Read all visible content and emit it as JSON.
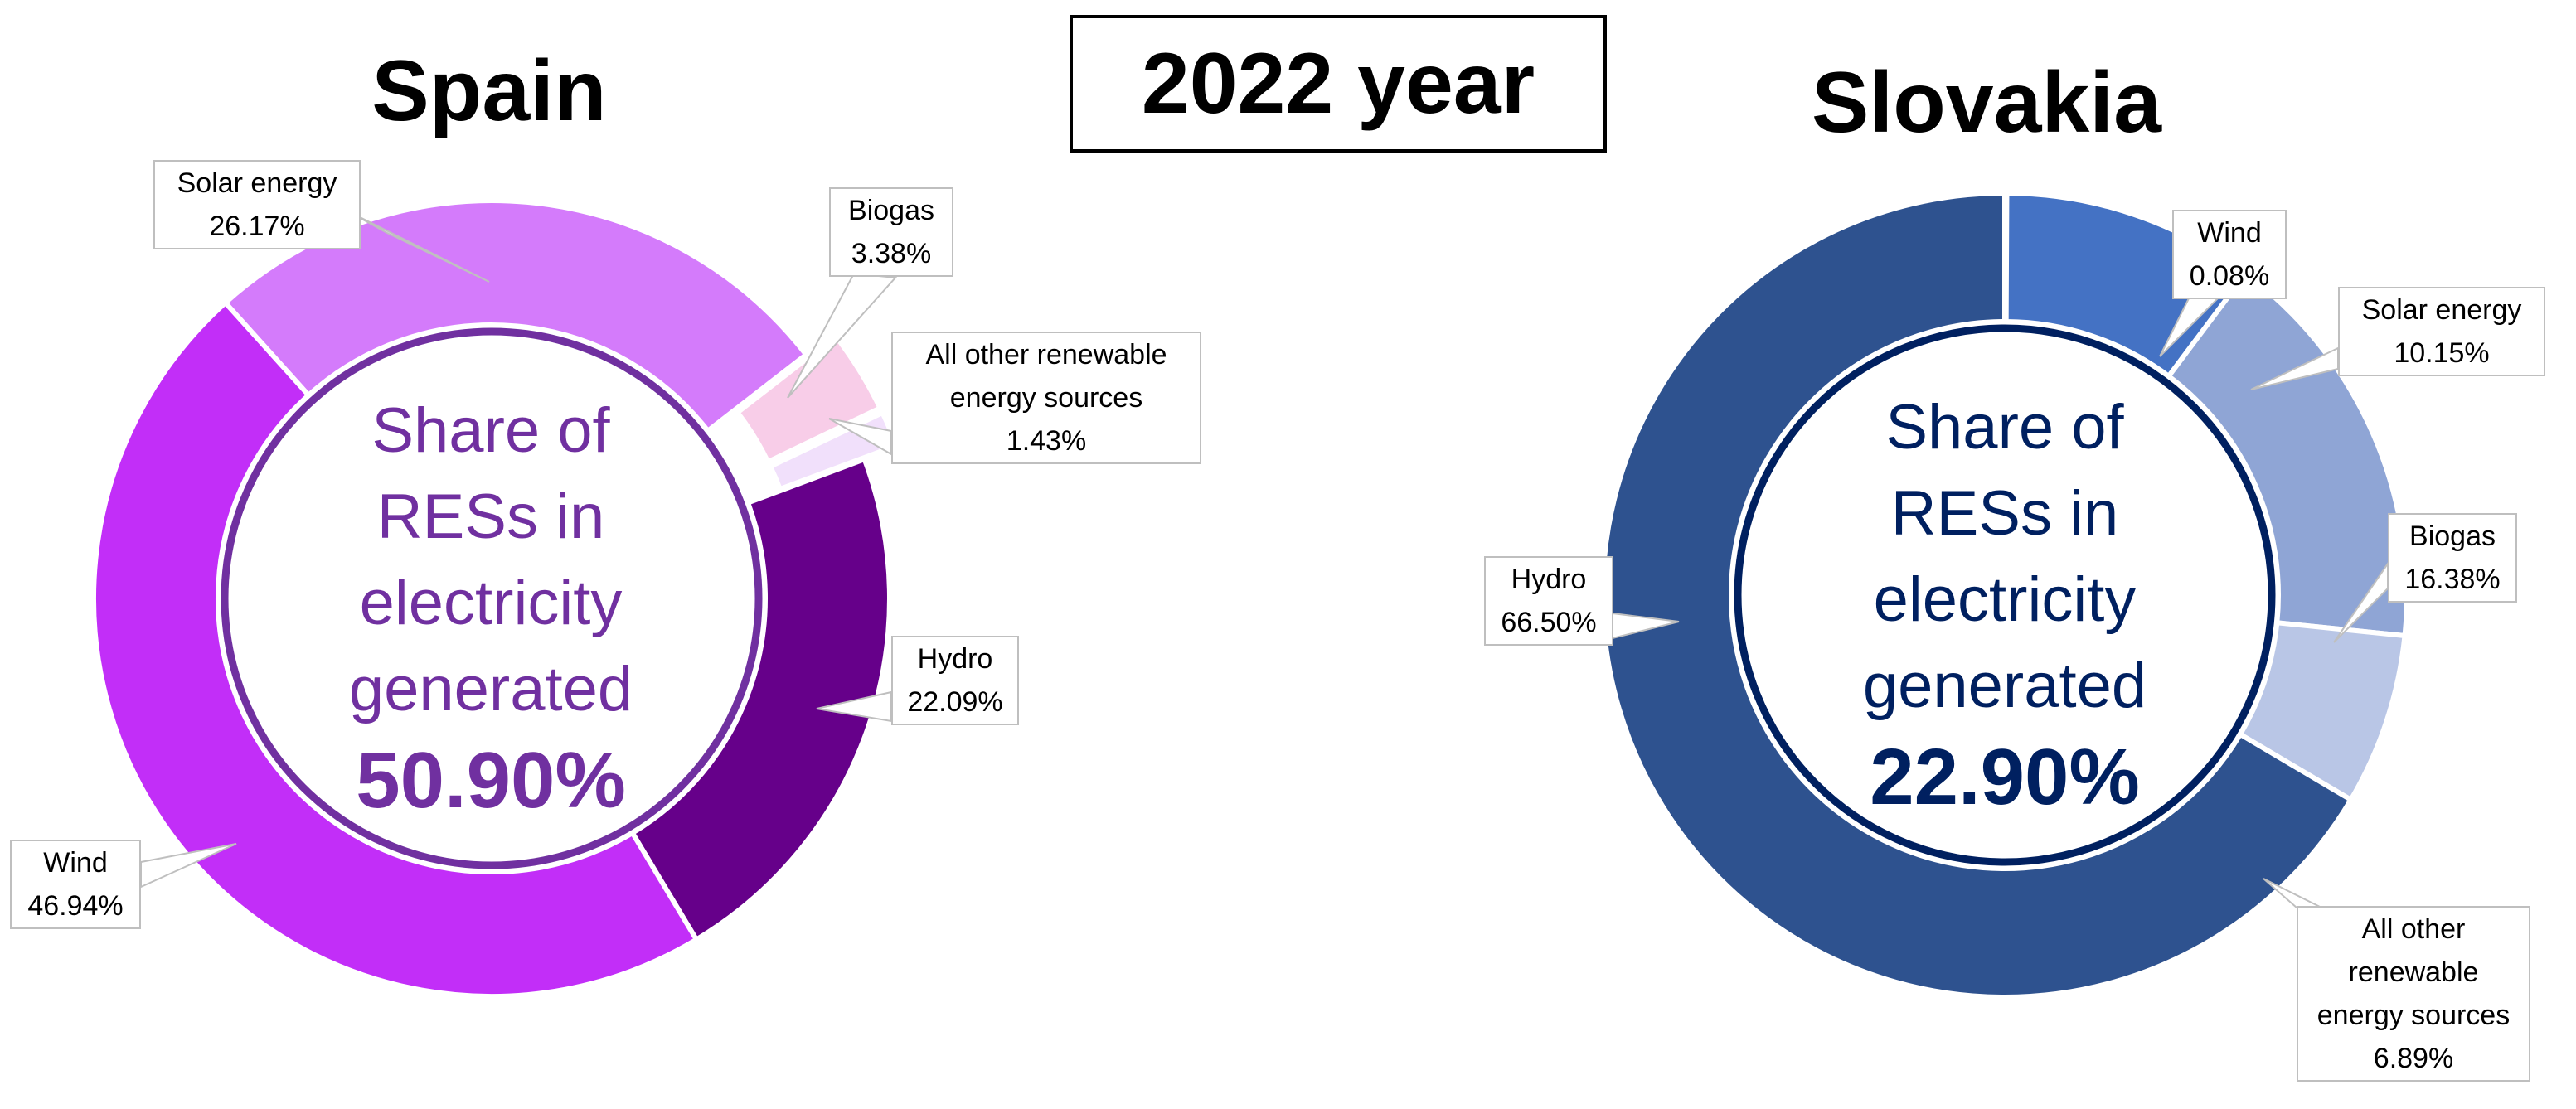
{
  "header": {
    "year_label": "2022 year"
  },
  "chart_data": [
    {
      "type": "pie",
      "variant": "donut",
      "title": "Spain",
      "center_label_lines": [
        "Share of",
        "RESs in",
        "electricity",
        "generated"
      ],
      "center_value": "50.90%",
      "center_color": "#7030a0",
      "slices": [
        {
          "name": "Solar energy",
          "value": 26.17,
          "label": "26.17%",
          "color": "#d47bfb"
        },
        {
          "name": "Biogas",
          "value": 3.38,
          "label": "3.38%",
          "color": "#f8cde8"
        },
        {
          "name": "All other renewable energy sources",
          "value": 1.43,
          "label": "1.43%",
          "color": "#f1e0fb"
        },
        {
          "name": "Hydro",
          "value": 22.09,
          "label": "22.09%",
          "color": "#66008a"
        },
        {
          "name": "Wind",
          "value": 46.94,
          "label": "46.94%",
          "color": "#c22ef8"
        }
      ]
    },
    {
      "type": "pie",
      "variant": "donut",
      "title": "Slovakia",
      "center_label_lines": [
        "Share of",
        "RESs in",
        "electricity",
        "generated"
      ],
      "center_value": "22.90%",
      "center_color": "#002060",
      "slices": [
        {
          "name": "Wind",
          "value": 0.08,
          "label": "0.08%",
          "color": "#2e4f8e"
        },
        {
          "name": "Solar energy",
          "value": 10.15,
          "label": "10.15%",
          "color": "#4472c4"
        },
        {
          "name": "Biogas",
          "value": 16.38,
          "label": "16.38%",
          "color": "#8fa5d5"
        },
        {
          "name": "All other renewable energy sources",
          "value": 6.89,
          "label": "6.89%",
          "color": "#b9c6e6"
        },
        {
          "name": "Hydro",
          "value": 66.5,
          "label": "66.50%",
          "color": "#2e528f"
        }
      ]
    }
  ],
  "callouts": {
    "spain": {
      "solar": {
        "name": "Solar energy",
        "value": "26.17%"
      },
      "biogas": {
        "name": "Biogas",
        "value": "3.38%"
      },
      "other_1": "All other renewable",
      "other_2": "energy sources",
      "other_value": "1.43%",
      "hydro": {
        "name": "Hydro",
        "value": "22.09%"
      },
      "wind": {
        "name": "Wind",
        "value": "46.94%"
      }
    },
    "slovakia": {
      "wind": {
        "name": "Wind",
        "value": "0.08%"
      },
      "solar": {
        "name": "Solar energy",
        "value": "10.15%"
      },
      "biogas": {
        "name": "Biogas",
        "value": "16.38%"
      },
      "other_1": "All other",
      "other_2": "renewable",
      "other_3": "energy sources",
      "other_value": "6.89%",
      "hydro": {
        "name": "Hydro",
        "value": "66.50%"
      }
    }
  }
}
